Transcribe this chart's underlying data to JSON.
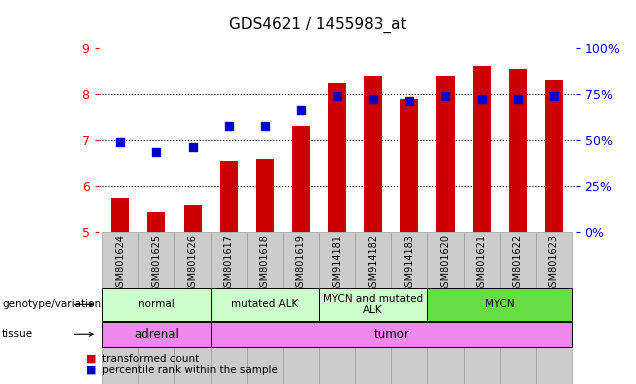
{
  "title": "GDS4621 / 1455983_at",
  "samples": [
    "GSM801624",
    "GSM801625",
    "GSM801626",
    "GSM801617",
    "GSM801618",
    "GSM801619",
    "GSM914181",
    "GSM914182",
    "GSM914183",
    "GSM801620",
    "GSM801621",
    "GSM801622",
    "GSM801623"
  ],
  "bar_values": [
    5.75,
    5.45,
    5.6,
    6.55,
    6.6,
    7.3,
    8.25,
    8.4,
    7.9,
    8.4,
    8.6,
    8.55,
    8.3
  ],
  "dot_values": [
    6.95,
    6.75,
    6.85,
    7.3,
    7.3,
    7.65,
    7.95,
    7.9,
    7.85,
    7.95,
    7.9,
    7.9,
    7.95
  ],
  "bar_color": "#cc0000",
  "dot_color": "#0000cc",
  "ylim_left": [
    5,
    9
  ],
  "ylim_right": [
    0,
    100
  ],
  "yticks_left": [
    5,
    6,
    7,
    8,
    9
  ],
  "yticks_right": [
    0,
    25,
    50,
    75,
    100
  ],
  "yticklabels_right": [
    "0%",
    "25%",
    "50%",
    "75%",
    "100%"
  ],
  "groups": [
    {
      "label": "normal",
      "start": 0,
      "end": 3,
      "color": "#ccffcc"
    },
    {
      "label": "mutated ALK",
      "start": 3,
      "end": 6,
      "color": "#ccffcc"
    },
    {
      "label": "MYCN and mutated\nALK",
      "start": 6,
      "end": 9,
      "color": "#ccffcc"
    },
    {
      "label": "MYCN",
      "start": 9,
      "end": 13,
      "color": "#66dd44"
    }
  ],
  "tissues": [
    {
      "label": "adrenal",
      "start": 0,
      "end": 3,
      "color": "#ee88ee"
    },
    {
      "label": "tumor",
      "start": 3,
      "end": 13,
      "color": "#ee88ee"
    }
  ],
  "genotype_label": "genotype/variation",
  "tissue_label": "tissue",
  "legend_bar": "transformed count",
  "legend_dot": "percentile rank within the sample",
  "bar_width": 0.5,
  "dot_size": 40,
  "col_bg_color": "#cccccc"
}
